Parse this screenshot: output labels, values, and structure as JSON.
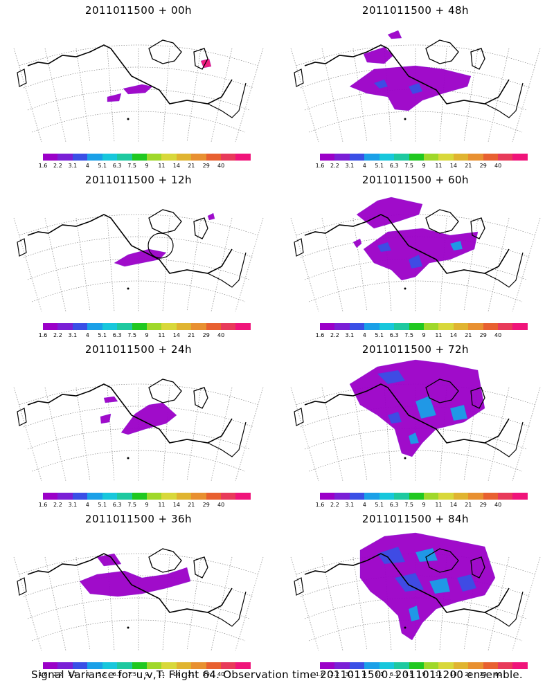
{
  "panels": [
    {
      "title": "2011011500 + 00h"
    },
    {
      "title": "2011011500 + 48h"
    },
    {
      "title": "2011011500 + 12h"
    },
    {
      "title": "2011011500 + 60h"
    },
    {
      "title": "2011011500 + 24h"
    },
    {
      "title": "2011011500 + 72h"
    },
    {
      "title": "2011011500 + 36h"
    },
    {
      "title": "2011011500 + 84h"
    }
  ],
  "colorbar": {
    "colors": [
      "#9b00c8",
      "#7a1fd6",
      "#3a4fe6",
      "#1aa0e8",
      "#17c7dc",
      "#1ec9a0",
      "#20c820",
      "#9fd82a",
      "#d8d83a",
      "#e0b430",
      "#e89030",
      "#e86030",
      "#e83a5a",
      "#f0147a"
    ],
    "labels": [
      "1.6",
      "2.2",
      "3.1",
      "4",
      "5.1",
      "6.3",
      "7.5",
      "9",
      "11",
      "14",
      "21",
      "29",
      "40"
    ]
  },
  "caption": "Signal Variance for u,v,T. Flight 64. Observation time 2011011500. 2011011200 ensemble."
}
